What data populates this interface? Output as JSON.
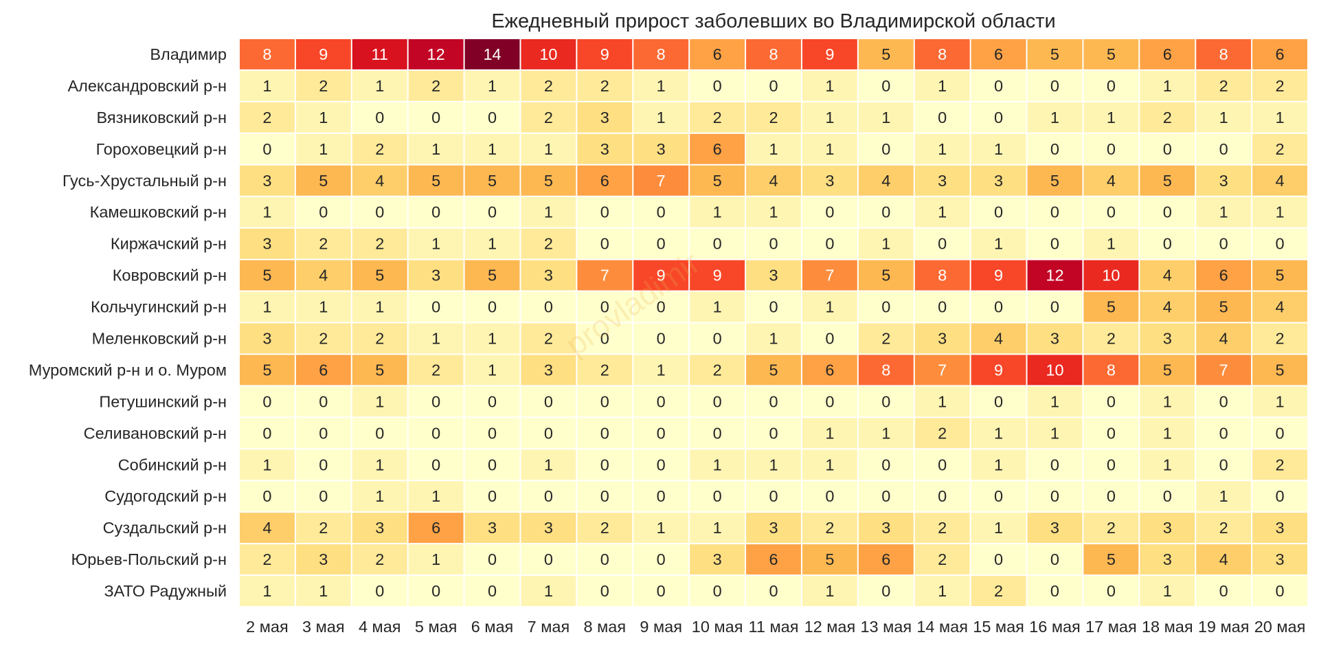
{
  "chart_data": {
    "type": "heatmap",
    "title": "Ежедневный прирост заболевших во Владимирской области",
    "watermark": "provladimir",
    "color_scale": {
      "vmin": 0,
      "vmax": 14,
      "colormap": "YlOrRd"
    },
    "legend": "none",
    "grid": false,
    "columns": [
      "2 мая",
      "3 мая",
      "4 мая",
      "5 мая",
      "6 мая",
      "7 мая",
      "8 мая",
      "9 мая",
      "10 мая",
      "11 мая",
      "12 мая",
      "13 мая",
      "14 мая",
      "15 мая",
      "16 мая",
      "17 мая",
      "18 мая",
      "19 мая",
      "20 мая"
    ],
    "rows": [
      "Владимир",
      "Александровский р-н",
      "Вязниковский р-н",
      "Гороховецкий р-н",
      "Гусь-Хрустальный р-н",
      "Камешковский р-н",
      "Киржачский р-н",
      "Ковровский р-н",
      "Кольчугинский р-н",
      "Меленковский р-н",
      "Муромский р-н и о. Муром",
      "Петушинский р-н",
      "Селивановский р-н",
      "Собинский р-н",
      "Судогодский р-н",
      "Суздальский р-н",
      "Юрьев-Польский р-н",
      "ЗАТО Радужный"
    ],
    "values": [
      [
        8,
        9,
        11,
        12,
        14,
        10,
        9,
        8,
        6,
        8,
        9,
        5,
        8,
        6,
        5,
        5,
        6,
        8,
        6
      ],
      [
        1,
        2,
        1,
        2,
        1,
        2,
        2,
        1,
        0,
        0,
        1,
        0,
        1,
        0,
        0,
        0,
        1,
        2,
        2
      ],
      [
        2,
        1,
        0,
        0,
        0,
        2,
        3,
        1,
        2,
        2,
        1,
        1,
        0,
        0,
        1,
        1,
        2,
        1,
        1
      ],
      [
        0,
        1,
        2,
        1,
        1,
        1,
        3,
        3,
        6,
        1,
        1,
        0,
        1,
        1,
        0,
        0,
        0,
        0,
        2
      ],
      [
        3,
        5,
        4,
        5,
        5,
        5,
        6,
        7,
        5,
        4,
        3,
        4,
        3,
        3,
        5,
        4,
        5,
        3,
        4
      ],
      [
        1,
        0,
        0,
        0,
        0,
        1,
        0,
        0,
        1,
        1,
        0,
        0,
        1,
        0,
        0,
        0,
        0,
        1,
        1
      ],
      [
        3,
        2,
        2,
        1,
        1,
        2,
        0,
        0,
        0,
        0,
        0,
        1,
        0,
        1,
        0,
        1,
        0,
        0,
        0
      ],
      [
        5,
        4,
        5,
        3,
        5,
        3,
        7,
        9,
        9,
        3,
        7,
        5,
        8,
        9,
        12,
        10,
        4,
        6,
        5
      ],
      [
        1,
        1,
        1,
        0,
        0,
        0,
        0,
        0,
        1,
        0,
        1,
        0,
        0,
        0,
        0,
        5,
        4,
        5,
        4
      ],
      [
        3,
        2,
        2,
        1,
        1,
        2,
        0,
        0,
        0,
        1,
        0,
        2,
        3,
        4,
        3,
        2,
        3,
        4,
        2
      ],
      [
        5,
        6,
        5,
        2,
        1,
        3,
        2,
        1,
        2,
        5,
        6,
        8,
        7,
        9,
        10,
        8,
        5,
        7,
        5
      ],
      [
        0,
        0,
        1,
        0,
        0,
        0,
        0,
        0,
        0,
        0,
        0,
        0,
        1,
        0,
        1,
        0,
        1,
        0,
        1
      ],
      [
        0,
        0,
        0,
        0,
        0,
        0,
        0,
        0,
        0,
        0,
        1,
        1,
        2,
        1,
        1,
        0,
        1,
        0,
        0
      ],
      [
        1,
        0,
        1,
        0,
        0,
        1,
        0,
        0,
        1,
        1,
        1,
        0,
        0,
        1,
        0,
        0,
        1,
        0,
        2
      ],
      [
        0,
        0,
        1,
        1,
        0,
        0,
        0,
        0,
        0,
        0,
        0,
        0,
        0,
        0,
        0,
        0,
        0,
        1,
        0
      ],
      [
        4,
        2,
        3,
        6,
        3,
        3,
        2,
        1,
        1,
        3,
        2,
        3,
        2,
        1,
        3,
        2,
        3,
        2,
        3
      ],
      [
        2,
        3,
        2,
        1,
        0,
        0,
        0,
        0,
        3,
        6,
        5,
        6,
        2,
        0,
        0,
        5,
        3,
        4,
        3
      ],
      [
        1,
        1,
        0,
        0,
        0,
        1,
        0,
        0,
        0,
        0,
        1,
        0,
        1,
        2,
        0,
        0,
        1,
        0,
        0
      ]
    ]
  }
}
